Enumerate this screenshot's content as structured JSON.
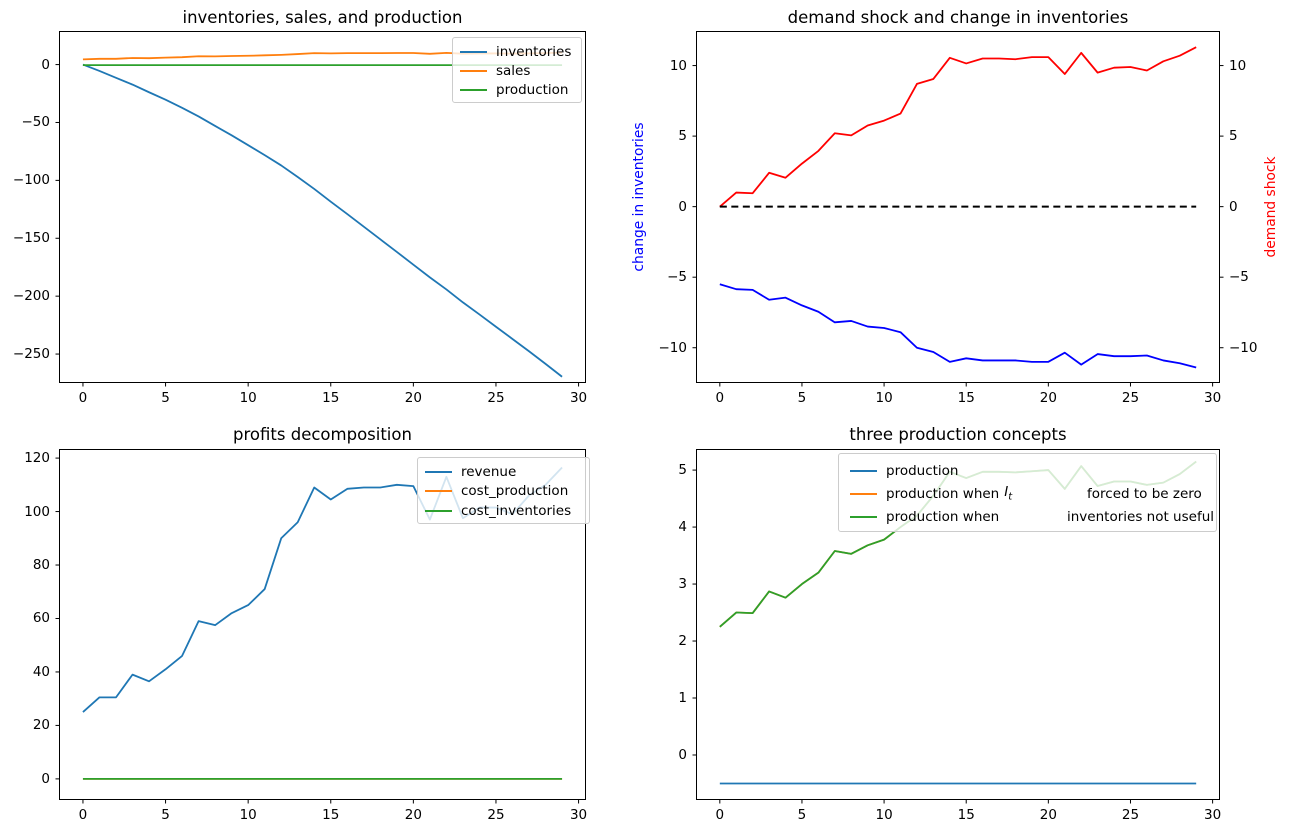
{
  "figure": {
    "background": "#ffffff"
  },
  "colors": {
    "mpl_blue": "#1f77b4",
    "mpl_orange": "#ff7f0e",
    "mpl_green": "#2ca02c",
    "pure_blue": "#0000ff",
    "pure_red": "#ff0000",
    "black": "#000000"
  },
  "chart_data": [
    {
      "id": "inventories-sales-production",
      "type": "line",
      "title": "inventories, sales, and production",
      "x": [
        0,
        1,
        2,
        3,
        4,
        5,
        6,
        7,
        8,
        9,
        10,
        11,
        12,
        13,
        14,
        15,
        16,
        17,
        18,
        19,
        20,
        21,
        22,
        23,
        24,
        25,
        26,
        27,
        28,
        29
      ],
      "xticks": [
        0,
        5,
        10,
        15,
        20,
        25,
        30
      ],
      "yticks": [
        0,
        -50,
        -100,
        -150,
        -200,
        -250
      ],
      "xlim": [
        -1.45,
        30.45
      ],
      "ylim": [
        -275,
        29
      ],
      "grid": false,
      "legend_position": "upper right",
      "series": [
        {
          "name": "inventories",
          "color": "#1f77b4",
          "values": [
            0,
            -5.5,
            -11.4,
            -17.3,
            -23.9,
            -30.3,
            -37.3,
            -44.8,
            -53.0,
            -61.1,
            -69.6,
            -78.2,
            -87.1,
            -97.1,
            -107.4,
            -118.4,
            -129.1,
            -140.0,
            -150.9,
            -161.8,
            -172.8,
            -183.8,
            -194.2,
            -205.4,
            -215.8,
            -226.4,
            -237.0,
            -247.6,
            -258.5,
            -269.6
          ]
        },
        {
          "name": "sales",
          "color": "#ff7f0e",
          "values": [
            4.5,
            5.0,
            5.0,
            5.7,
            5.5,
            6.0,
            6.4,
            7.2,
            7.1,
            7.4,
            7.6,
            8.0,
            8.4,
            9.1,
            9.9,
            9.7,
            9.9,
            9.9,
            9.9,
            10.0,
            10.0,
            9.3,
            10.1,
            9.4,
            9.6,
            9.6,
            9.5,
            9.6,
            9.9,
            10.3
          ]
        },
        {
          "name": "production",
          "color": "#2ca02c",
          "values": [
            -0.5,
            -0.5,
            -0.5,
            -0.5,
            -0.5,
            -0.5,
            -0.5,
            -0.5,
            -0.5,
            -0.5,
            -0.5,
            -0.5,
            -0.5,
            -0.5,
            -0.5,
            -0.5,
            -0.5,
            -0.5,
            -0.5,
            -0.5,
            -0.5,
            -0.5,
            -0.5,
            -0.5,
            -0.5,
            -0.5,
            -0.5,
            -0.5,
            -0.5,
            -0.5
          ]
        }
      ]
    },
    {
      "id": "demand-shock-and-change-in-inventories",
      "type": "line",
      "title": "demand shock and change in inventories",
      "x": [
        0,
        1,
        2,
        3,
        4,
        5,
        6,
        7,
        8,
        9,
        10,
        11,
        12,
        13,
        14,
        15,
        16,
        17,
        18,
        19,
        20,
        21,
        22,
        23,
        24,
        25,
        26,
        27,
        28,
        29
      ],
      "xticks": [
        0,
        5,
        10,
        15,
        20,
        25,
        30
      ],
      "yticks": [
        10,
        5,
        0,
        -5,
        -10
      ],
      "yticks_right": [
        10,
        5,
        0,
        -5,
        -10
      ],
      "xlim": [
        -1.45,
        30.45
      ],
      "ylim": [
        -12.5,
        12.45
      ],
      "grid": false,
      "ylabel_left": {
        "text": "change in inventories",
        "color": "#0000ff"
      },
      "ylabel_right": {
        "text": "demand shock",
        "color": "#ff0000"
      },
      "series": [
        {
          "name": "demand shock",
          "color": "#ff0000",
          "values": [
            0.0,
            1.0,
            0.95,
            2.4,
            2.05,
            3.05,
            3.95,
            5.2,
            5.05,
            5.75,
            6.1,
            6.6,
            8.7,
            9.05,
            10.55,
            10.15,
            10.5,
            10.5,
            10.45,
            10.6,
            10.6,
            9.4,
            10.9,
            9.5,
            9.85,
            9.9,
            9.65,
            10.3,
            10.7,
            11.3
          ]
        },
        {
          "name": "change in inventories",
          "color": "#0000ff",
          "values": [
            -5.5,
            -5.85,
            -5.9,
            -6.6,
            -6.45,
            -7.0,
            -7.45,
            -8.2,
            -8.1,
            -8.5,
            -8.6,
            -8.9,
            -10.0,
            -10.3,
            -11.0,
            -10.75,
            -10.9,
            -10.9,
            -10.9,
            -11.0,
            -11.0,
            -10.35,
            -11.2,
            -10.45,
            -10.6,
            -10.6,
            -10.55,
            -10.9,
            -11.1,
            -11.4
          ]
        },
        {
          "name": "zero line",
          "color": "#000000",
          "dash": true,
          "values": [
            0,
            0,
            0,
            0,
            0,
            0,
            0,
            0,
            0,
            0,
            0,
            0,
            0,
            0,
            0,
            0,
            0,
            0,
            0,
            0,
            0,
            0,
            0,
            0,
            0,
            0,
            0,
            0,
            0,
            0
          ]
        }
      ]
    },
    {
      "id": "profits-decomposition",
      "type": "line",
      "title": "profits decomposition",
      "x": [
        0,
        1,
        2,
        3,
        4,
        5,
        6,
        7,
        8,
        9,
        10,
        11,
        12,
        13,
        14,
        15,
        16,
        17,
        18,
        19,
        20,
        21,
        22,
        23,
        24,
        25,
        26,
        27,
        28,
        29
      ],
      "xticks": [
        0,
        5,
        10,
        15,
        20,
        25,
        30
      ],
      "yticks": [
        120,
        100,
        80,
        60,
        40,
        20,
        0
      ],
      "xlim": [
        -1.45,
        30.45
      ],
      "ylim": [
        -7.9,
        123.4
      ],
      "grid": false,
      "legend_position": "upper right",
      "series": [
        {
          "name": "revenue",
          "color": "#1f77b4",
          "values": [
            25,
            30.5,
            30.5,
            39,
            36.5,
            41,
            46,
            59,
            57.5,
            62,
            65,
            71,
            90,
            96,
            109,
            104.5,
            108.5,
            109,
            109,
            110,
            109.5,
            97,
            113,
            97.5,
            101.5,
            101.5,
            99,
            106,
            110,
            116.5
          ]
        },
        {
          "name": "cost_production",
          "color": "#ff7f0e",
          "values": [
            0,
            0,
            0,
            0,
            0,
            0,
            0,
            0,
            0,
            0,
            0,
            0,
            0,
            0,
            0,
            0,
            0,
            0,
            0,
            0,
            0,
            0,
            0,
            0,
            0,
            0,
            0,
            0,
            0,
            0
          ]
        },
        {
          "name": "cost_inventories",
          "color": "#2ca02c",
          "values": [
            0,
            0,
            0,
            0,
            0,
            0,
            0,
            0,
            0,
            0,
            0,
            0,
            0,
            0,
            0,
            0,
            0,
            0,
            0,
            0,
            0,
            0,
            0,
            0,
            0,
            0,
            0,
            0,
            0,
            0
          ]
        }
      ]
    },
    {
      "id": "three-production-concepts",
      "type": "line",
      "title": "three production concepts",
      "x": [
        0,
        1,
        2,
        3,
        4,
        5,
        6,
        7,
        8,
        9,
        10,
        11,
        12,
        13,
        14,
        15,
        16,
        17,
        18,
        19,
        20,
        21,
        22,
        23,
        24,
        25,
        26,
        27,
        28,
        29
      ],
      "xticks": [
        0,
        5,
        10,
        15,
        20,
        25,
        30
      ],
      "yticks": [
        5,
        4,
        3,
        2,
        1,
        0
      ],
      "xlim": [
        -1.45,
        30.45
      ],
      "ylim": [
        -0.79,
        5.37
      ],
      "grid": false,
      "legend_position": "upper center",
      "series": [
        {
          "name": "production",
          "color": "#1f77b4",
          "values": [
            -0.5,
            -0.5,
            -0.5,
            -0.5,
            -0.5,
            -0.5,
            -0.5,
            -0.5,
            -0.5,
            -0.5,
            -0.5,
            -0.5,
            -0.5,
            -0.5,
            -0.5,
            -0.5,
            -0.5,
            -0.5,
            -0.5,
            -0.5,
            -0.5,
            -0.5,
            -0.5,
            -0.5,
            -0.5,
            -0.5,
            -0.5,
            -0.5,
            -0.5,
            -0.5
          ]
        },
        {
          "name": "production when It forced to be zero",
          "color": "#ff7f0e",
          "label_pre": "production when",
          "label_math": "I",
          "label_math_sub": "t",
          "label_post": "forced to be zero",
          "values": [
            2.25,
            2.5,
            2.49,
            2.87,
            2.76,
            3.0,
            3.2,
            3.58,
            3.53,
            3.68,
            3.78,
            4.0,
            4.2,
            4.55,
            4.97,
            4.86,
            4.97,
            4.97,
            4.96,
            4.98,
            5.0,
            4.67,
            5.07,
            4.72,
            4.8,
            4.8,
            4.74,
            4.78,
            4.93,
            5.15
          ]
        },
        {
          "name": "production when inventories not useful",
          "color": "#2ca02c",
          "label_pre": "production when",
          "label_math": "",
          "label_math_sub": "",
          "label_post": "inventories not useful",
          "values": [
            2.25,
            2.5,
            2.49,
            2.87,
            2.76,
            3.0,
            3.2,
            3.58,
            3.53,
            3.68,
            3.78,
            4.0,
            4.2,
            4.55,
            4.97,
            4.86,
            4.97,
            4.97,
            4.96,
            4.98,
            5.0,
            4.67,
            5.07,
            4.72,
            4.8,
            4.8,
            4.74,
            4.78,
            4.93,
            5.15
          ]
        }
      ]
    }
  ]
}
